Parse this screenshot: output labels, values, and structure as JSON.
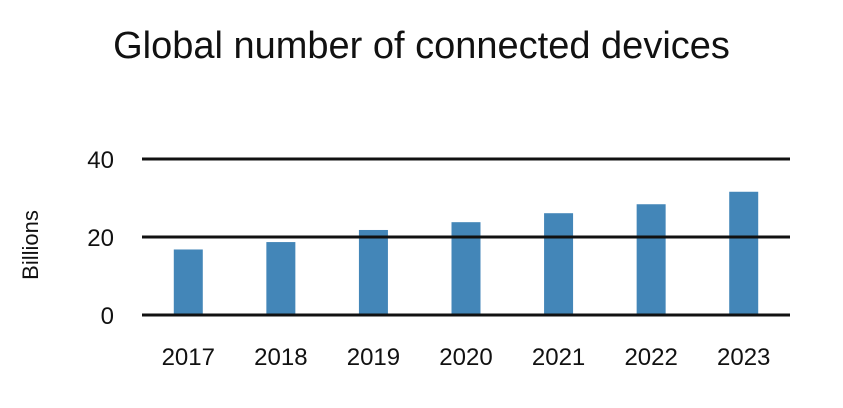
{
  "chart_data": {
    "type": "bar",
    "title": "Global number of connected devices",
    "xlabel": "",
    "ylabel": "Billions",
    "categories": [
      "2017",
      "2018",
      "2019",
      "2020",
      "2021",
      "2022",
      "2023"
    ],
    "values": [
      16.8,
      18.7,
      21.8,
      23.8,
      26.1,
      28.4,
      31.6
    ],
    "ylim": [
      0,
      40
    ],
    "y_ticks": [
      "0",
      "20",
      "40"
    ],
    "y_tick_values": [
      0,
      20,
      40
    ],
    "grid": true,
    "legend": "none",
    "bar_color": "#4386b8",
    "grid_color": "#111111"
  }
}
